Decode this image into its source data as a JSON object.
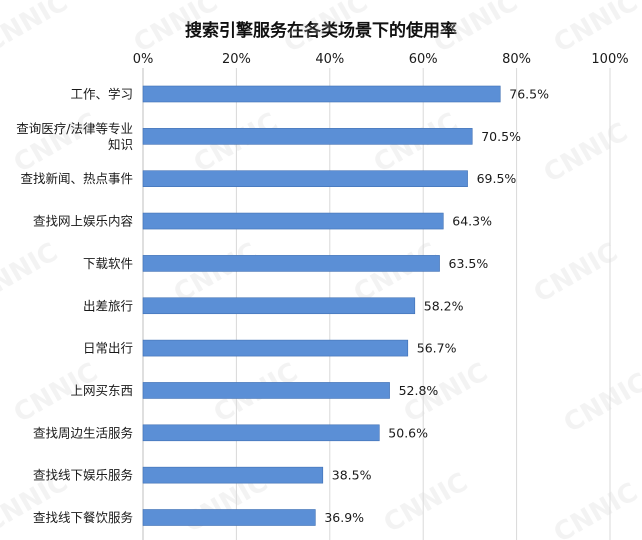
{
  "watermark": "CNNIC",
  "chart_data": {
    "type": "bar",
    "orientation": "horizontal",
    "title": "搜索引擎服务在各类场景下的使用率",
    "categories": [
      "工作、学习",
      "查询医疗/法律等专业知识",
      "查找新闻、热点事件",
      "查找网上娱乐内容",
      "下载软件",
      "出差旅行",
      "日常出行",
      "上网买东西",
      "查找周边生活服务",
      "查找线下娱乐服务",
      "查找线下餐饮服务"
    ],
    "category_label_lines": [
      [
        "工作、学习"
      ],
      [
        "查询医疗/法律等专业",
        "知识"
      ],
      [
        "查找新闻、热点事件"
      ],
      [
        "查找网上娱乐内容"
      ],
      [
        "下载软件"
      ],
      [
        "出差旅行"
      ],
      [
        "日常出行"
      ],
      [
        "上网买东西"
      ],
      [
        "查找周边生活服务"
      ],
      [
        "查找线下娱乐服务"
      ],
      [
        "查找线下餐饮服务"
      ]
    ],
    "values": [
      76.5,
      70.5,
      69.5,
      64.3,
      63.5,
      58.2,
      56.7,
      52.8,
      50.6,
      38.5,
      36.9
    ],
    "value_labels": [
      "76.5%",
      "70.5%",
      "69.5%",
      "64.3%",
      "63.5%",
      "58.2%",
      "56.7%",
      "52.8%",
      "50.6%",
      "38.5%",
      "36.9%"
    ],
    "xlim": [
      0,
      100
    ],
    "xticks": [
      0,
      20,
      40,
      60,
      80,
      100
    ],
    "xtick_labels": [
      "0%",
      "20%",
      "40%",
      "60%",
      "80%",
      "100%"
    ],
    "xaxis_position": "top",
    "grid": "vertical",
    "legend": "none",
    "bar_color": "#5b8fd6",
    "bar_stroke": "#3f6fb3",
    "grid_color": "#d9d9d9",
    "text_color": "#1a1a1a"
  }
}
